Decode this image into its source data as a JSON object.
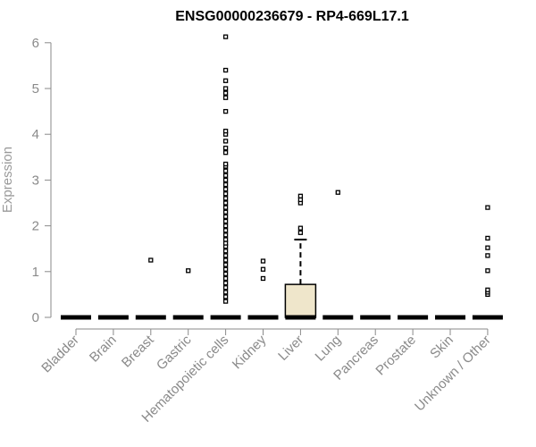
{
  "chart_data": {
    "type": "boxplot",
    "title": "ENSG00000236679 - RP4-669L17.1",
    "xlabel": "",
    "ylabel": "Expression",
    "ylim": [
      0,
      6.2
    ],
    "yticks": [
      0,
      1,
      2,
      3,
      4,
      5,
      6
    ],
    "box_fill": "#efe6cb",
    "categories": [
      "Bladder",
      "Brain",
      "Breast",
      "Gastric",
      "Hematopoietic cells",
      "Kidney",
      "Liver",
      "Lung",
      "Pancreas",
      "Prostate",
      "Skin",
      "Unknown / Other"
    ],
    "boxes": [
      {
        "category": "Bladder",
        "q1": 0,
        "median": 0,
        "q3": 0,
        "whisker_low": 0,
        "whisker_high": 0,
        "outliers": []
      },
      {
        "category": "Brain",
        "q1": 0,
        "median": 0,
        "q3": 0,
        "whisker_low": 0,
        "whisker_high": 0,
        "outliers": []
      },
      {
        "category": "Breast",
        "q1": 0,
        "median": 0,
        "q3": 0,
        "whisker_low": 0,
        "whisker_high": 0,
        "outliers": [
          1.25
        ]
      },
      {
        "category": "Gastric",
        "q1": 0,
        "median": 0,
        "q3": 0,
        "whisker_low": 0,
        "whisker_high": 0,
        "outliers": [
          1.02
        ]
      },
      {
        "category": "Hematopoietic cells",
        "q1": 0,
        "median": 0,
        "q3": 0,
        "whisker_low": 0,
        "whisker_high": 0,
        "outliers": [
          0.35,
          0.45,
          0.55,
          0.65,
          0.75,
          0.85,
          0.95,
          1.05,
          1.15,
          1.25,
          1.35,
          1.45,
          1.55,
          1.62,
          1.7,
          1.8,
          1.9,
          2.0,
          2.1,
          2.2,
          2.3,
          2.4,
          2.5,
          2.6,
          2.7,
          2.8,
          2.9,
          3.0,
          3.1,
          3.2,
          3.3,
          3.35,
          3.6,
          3.7,
          3.85,
          4.0,
          4.07,
          4.5,
          4.8,
          4.9,
          5.0,
          5.17,
          5.4,
          6.13
        ]
      },
      {
        "category": "Kidney",
        "q1": 0,
        "median": 0,
        "q3": 0,
        "whisker_low": 0,
        "whisker_high": 0,
        "outliers": [
          0.85,
          1.05,
          1.23
        ]
      },
      {
        "category": "Liver",
        "q1": 0,
        "median": 0,
        "q3": 0.72,
        "whisker_low": 0,
        "whisker_high": 1.7,
        "outliers": [
          1.85,
          1.95,
          2.5,
          2.57,
          2.65
        ]
      },
      {
        "category": "Lung",
        "q1": 0,
        "median": 0,
        "q3": 0,
        "whisker_low": 0,
        "whisker_high": 0,
        "outliers": [
          2.73
        ]
      },
      {
        "category": "Pancreas",
        "q1": 0,
        "median": 0,
        "q3": 0,
        "whisker_low": 0,
        "whisker_high": 0,
        "outliers": []
      },
      {
        "category": "Prostate",
        "q1": 0,
        "median": 0,
        "q3": 0,
        "whisker_low": 0,
        "whisker_high": 0,
        "outliers": []
      },
      {
        "category": "Skin",
        "q1": 0,
        "median": 0,
        "q3": 0,
        "whisker_low": 0,
        "whisker_high": 0,
        "outliers": []
      },
      {
        "category": "Unknown / Other",
        "q1": 0,
        "median": 0,
        "q3": 0,
        "whisker_low": 0,
        "whisker_high": 0,
        "outliers": [
          0.5,
          0.55,
          0.6,
          1.02,
          1.35,
          1.52,
          1.73,
          2.4
        ]
      }
    ]
  }
}
